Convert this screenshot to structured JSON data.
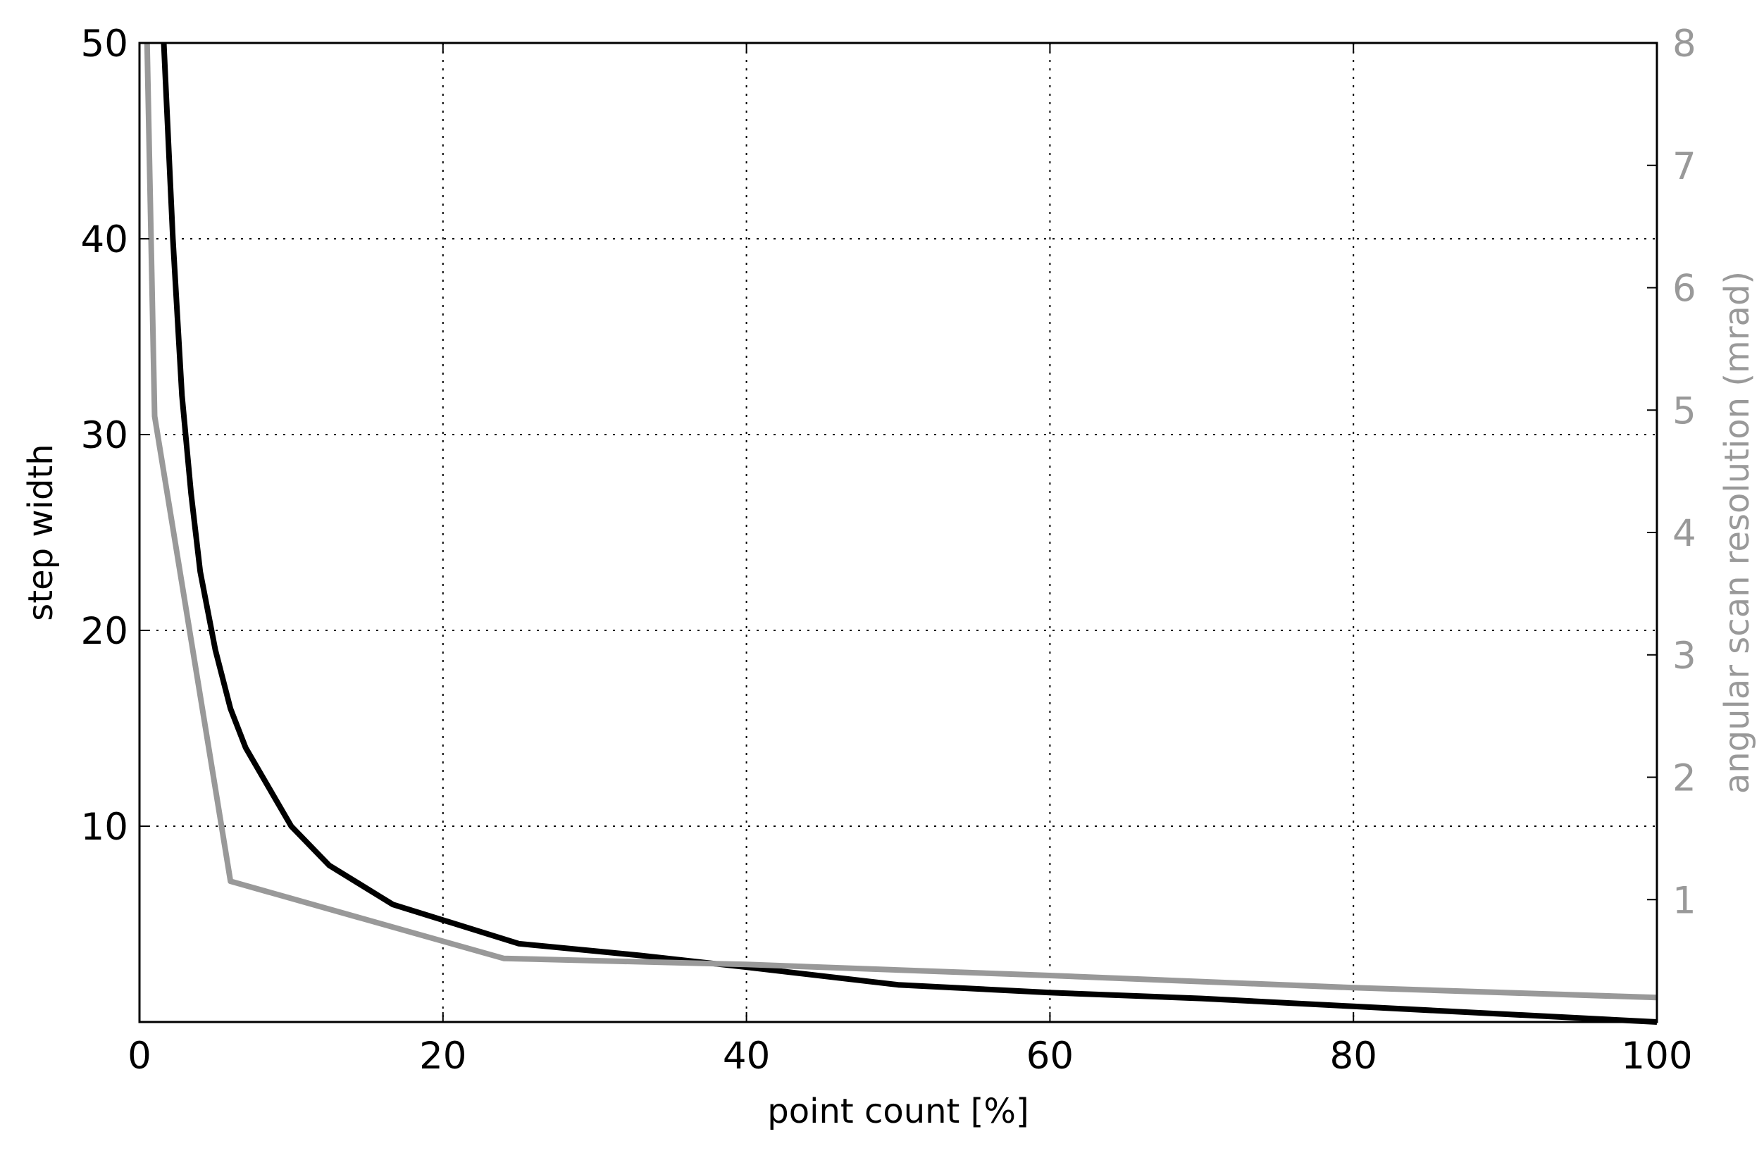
{
  "chart_data": {
    "type": "line",
    "title": "",
    "xlabel": "point count [%]",
    "ylabel": "step width",
    "y2label": "angular scan resolution (mrad)",
    "xlim": [
      0,
      100
    ],
    "ylim": [
      0,
      50
    ],
    "y2lim": [
      0,
      8
    ],
    "grid": true,
    "grid_style": "dotted",
    "x_ticks": [
      "0",
      "20",
      "40",
      "60",
      "80",
      "100"
    ],
    "y_ticks": [
      "10",
      "20",
      "30",
      "40",
      "50"
    ],
    "y2_ticks": [
      "1",
      "2",
      "3",
      "4",
      "5",
      "6",
      "7",
      "8"
    ],
    "colors": {
      "step_width": "#000000",
      "angular": "#999999",
      "axes": "#000000",
      "grid": "#000000"
    },
    "series": [
      {
        "axis": "left",
        "color": "#000000",
        "x": [
          1.6,
          2.2,
          2.8,
          3.4,
          4.0,
          5.0,
          6.0,
          7.0,
          8.5,
          10,
          12.5,
          16.7,
          25,
          33,
          40,
          50,
          60,
          70,
          80,
          90,
          100
        ],
        "y": [
          50,
          40,
          32,
          27,
          23,
          19,
          16,
          14,
          12,
          10,
          8,
          6,
          4,
          3.4,
          2.8,
          1.9,
          1.5,
          1.2,
          0.8,
          0.4,
          0
        ]
      },
      {
        "axis": "right",
        "color": "#999999",
        "x": [
          0.5,
          1.0,
          6.0,
          24.0,
          40.0,
          60.0,
          80.0,
          100.0
        ],
        "y": [
          8,
          4.95,
          1.15,
          0.52,
          0.47,
          0.38,
          0.28,
          0.2
        ]
      }
    ]
  }
}
